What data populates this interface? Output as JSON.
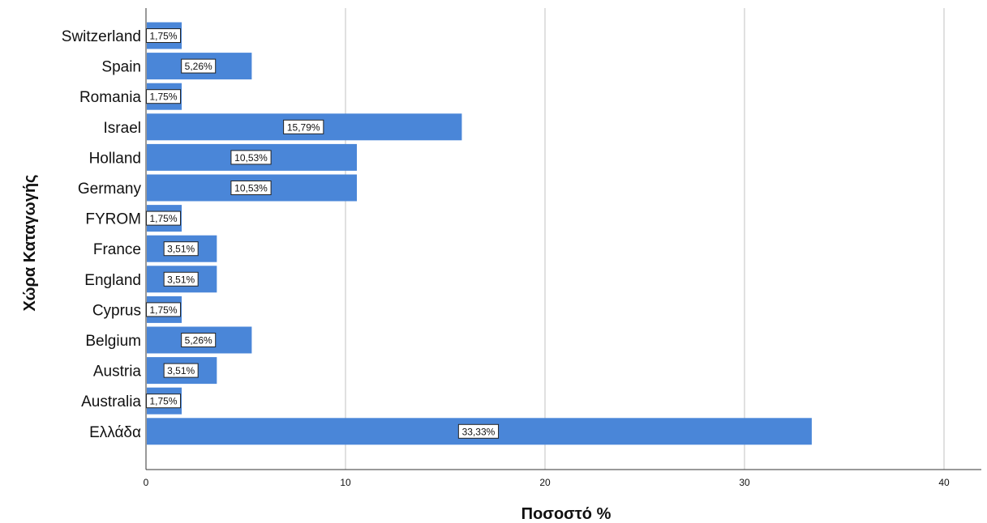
{
  "chart_data": {
    "type": "bar",
    "orientation": "horizontal",
    "xlabel": "Ποσοστό %",
    "ylabel": "Χώρα Καταγωγής",
    "xlim": [
      0,
      42
    ],
    "xticks": [
      0,
      10,
      20,
      30,
      40
    ],
    "grid": "vertical",
    "bar_color": "#4a86d8",
    "categories": [
      "Switzerland",
      "Spain",
      "Romania",
      "Israel",
      "Holland",
      "Germany",
      "FYROM",
      "France",
      "England",
      "Cyprus",
      "Belgium",
      "Austria",
      "Australia",
      "Ελλάδα"
    ],
    "values": [
      1.75,
      5.26,
      1.75,
      15.79,
      10.53,
      10.53,
      1.75,
      3.51,
      3.51,
      1.75,
      5.26,
      3.51,
      1.75,
      33.33
    ],
    "data_labels": [
      "1,75%",
      "5,26%",
      "1,75%",
      "15,79%",
      "10,53%",
      "10,53%",
      "1,75%",
      "3,51%",
      "3,51%",
      "1,75%",
      "5,26%",
      "3,51%",
      "1,75%",
      "33,33%"
    ]
  }
}
